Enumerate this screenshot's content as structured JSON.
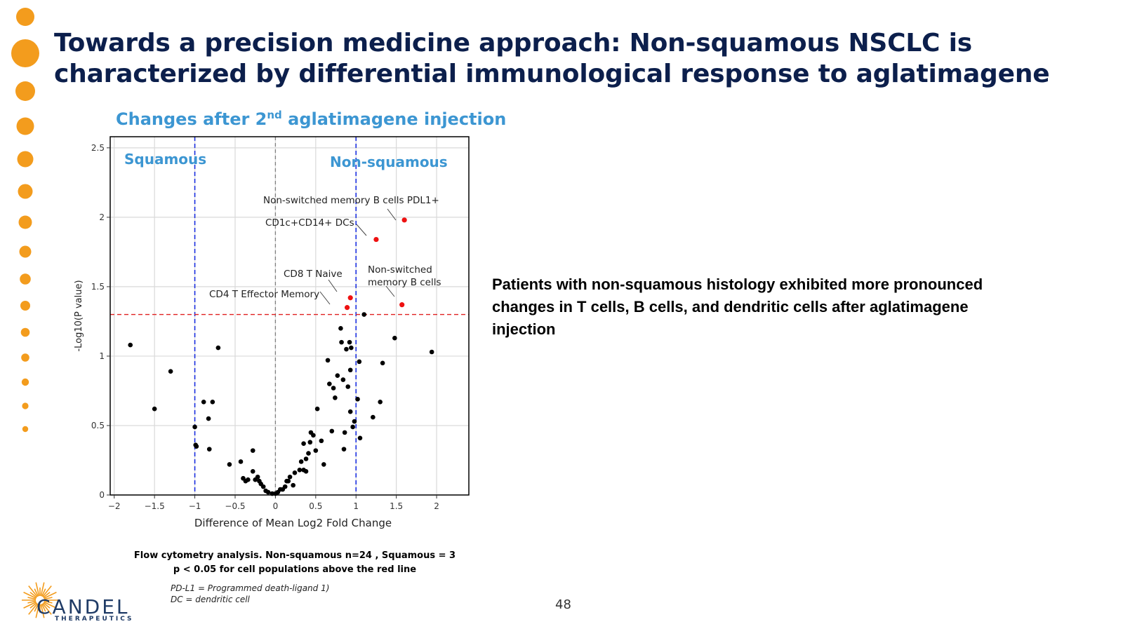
{
  "slide": {
    "title": "Towards a precision medicine approach: Non-squamous NSCLC is characterized by differential immunological response to aglatimagene",
    "subtitle_pre": "Changes after 2",
    "subtitle_sup": "nd",
    "subtitle_post": " aglatimagene injection",
    "insight": "Patients with non-squamous histology exhibited more pronounced changes in  T cells, B cells, and dendritic cells after aglatimagene injection",
    "footnote_line1": "Flow cytometry analysis. Non-squamous n=24 , Squamous  = 3",
    "footnote_line2": "p < 0.05 for cell populations above the red line",
    "abbrev_line1": "PD-L1 = Programmed death-ligand 1)",
    "abbrev_line2": "DC = dendritic cell",
    "page_number": "48",
    "logo_text": "CANDEL",
    "logo_subtext": "THERAPEUTICS"
  },
  "colors": {
    "title": "#0c1f4c",
    "accent_blue": "#3c96d2",
    "dot_orange": "#f39c1d",
    "threshold_red": "#e02020",
    "threshold_blue": "#1a2ee0",
    "sig_point": "#ee1111",
    "point": "#000000"
  },
  "chart_data": {
    "type": "scatter",
    "xlabel": "Difference of Mean Log2 Fold Change",
    "ylabel": "-Log10(P value)",
    "xlim": [
      -2.05,
      2.4
    ],
    "ylim": [
      0,
      2.58
    ],
    "xticks": [
      -2,
      -1.5,
      -1,
      -0.5,
      0,
      0.5,
      1,
      1.5,
      2
    ],
    "xtick_labels": [
      "−2",
      "−1.5",
      "−1",
      "−0.5",
      "0",
      "0.5",
      "1",
      "1.5",
      "2"
    ],
    "yticks": [
      0,
      0.5,
      1,
      1.5,
      2,
      2.5
    ],
    "ytick_labels": [
      "0",
      "0.5",
      "1",
      "1.5",
      "2",
      "2.5"
    ],
    "grid": true,
    "hline": 1.3,
    "vlines_blue": [
      -1,
      1
    ],
    "vline_gray": 0,
    "region_labels": [
      "Squamous",
      "Non-squamous"
    ],
    "significant_points": [
      {
        "x": 1.6,
        "y": 1.98,
        "label": "Non-switched memory B cells PDL1+"
      },
      {
        "x": 1.25,
        "y": 1.84,
        "label": "CD1c+CD14+ DCs"
      },
      {
        "x": 0.93,
        "y": 1.42,
        "label": "CD8 T Naive"
      },
      {
        "x": 1.57,
        "y": 1.37,
        "label": "Non-switched memory B cells"
      },
      {
        "x": 0.89,
        "y": 1.35,
        "label": "CD4 T Effector Memory"
      }
    ],
    "points": [
      [
        1.1,
        1.3
      ],
      [
        -1.8,
        1.08
      ],
      [
        -1.5,
        0.62
      ],
      [
        -1.3,
        0.89
      ],
      [
        -1.0,
        0.49
      ],
      [
        -0.99,
        0.36
      ],
      [
        -0.98,
        0.35
      ],
      [
        -0.89,
        0.67
      ],
      [
        -0.78,
        0.67
      ],
      [
        -0.83,
        0.55
      ],
      [
        -0.82,
        0.33
      ],
      [
        -0.71,
        1.06
      ],
      [
        -0.57,
        0.22
      ],
      [
        -0.43,
        0.24
      ],
      [
        -0.4,
        0.12
      ],
      [
        -0.37,
        0.1
      ],
      [
        -0.34,
        0.11
      ],
      [
        -0.28,
        0.32
      ],
      [
        -0.28,
        0.17
      ],
      [
        -0.25,
        0.11
      ],
      [
        -0.22,
        0.13
      ],
      [
        -0.2,
        0.1
      ],
      [
        -0.18,
        0.08
      ],
      [
        -0.15,
        0.06
      ],
      [
        -0.12,
        0.03
      ],
      [
        -0.09,
        0.02
      ],
      [
        -0.04,
        0.01
      ],
      [
        0.0,
        0.01
      ],
      [
        0.03,
        0.02
      ],
      [
        0.06,
        0.04
      ],
      [
        0.09,
        0.04
      ],
      [
        0.12,
        0.06
      ],
      [
        0.14,
        0.1
      ],
      [
        0.16,
        0.1
      ],
      [
        0.18,
        0.13
      ],
      [
        0.22,
        0.07
      ],
      [
        0.24,
        0.16
      ],
      [
        0.3,
        0.18
      ],
      [
        0.32,
        0.24
      ],
      [
        0.35,
        0.18
      ],
      [
        0.38,
        0.17
      ],
      [
        0.35,
        0.37
      ],
      [
        0.38,
        0.26
      ],
      [
        0.41,
        0.3
      ],
      [
        0.43,
        0.38
      ],
      [
        0.44,
        0.45
      ],
      [
        0.47,
        0.43
      ],
      [
        0.5,
        0.32
      ],
      [
        0.52,
        0.62
      ],
      [
        0.57,
        0.39
      ],
      [
        0.6,
        0.22
      ],
      [
        0.65,
        0.97
      ],
      [
        0.67,
        0.8
      ],
      [
        0.7,
        0.46
      ],
      [
        0.72,
        0.77
      ],
      [
        0.74,
        0.7
      ],
      [
        0.77,
        0.86
      ],
      [
        0.81,
        1.2
      ],
      [
        0.82,
        1.1
      ],
      [
        0.84,
        0.83
      ],
      [
        0.86,
        0.45
      ],
      [
        0.85,
        0.33
      ],
      [
        0.88,
        1.05
      ],
      [
        0.9,
        0.78
      ],
      [
        0.92,
        1.1
      ],
      [
        0.94,
        1.06
      ],
      [
        0.93,
        0.6
      ],
      [
        0.93,
        0.9
      ],
      [
        0.96,
        0.49
      ],
      [
        0.98,
        0.53
      ],
      [
        1.02,
        0.69
      ],
      [
        1.04,
        0.96
      ],
      [
        1.05,
        0.41
      ],
      [
        1.21,
        0.56
      ],
      [
        1.3,
        0.67
      ],
      [
        1.33,
        0.95
      ],
      [
        1.48,
        1.13
      ],
      [
        1.94,
        1.03
      ]
    ]
  }
}
